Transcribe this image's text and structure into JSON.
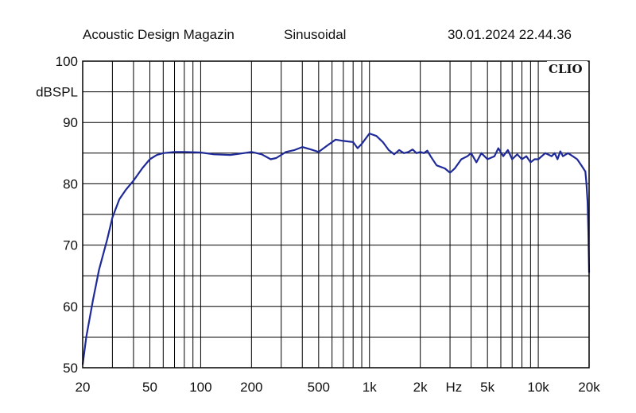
{
  "header": {
    "left": "Acoustic Design Magazin",
    "middle": "Sinusoidal",
    "right": "30.01.2024 22.44.36"
  },
  "brand": "CLIO",
  "colors": {
    "curve": "#1f2a99",
    "grid": "#000000",
    "background": "#ffffff"
  },
  "chart_data": {
    "type": "line",
    "x_scale": "log",
    "xlim": [
      20,
      20000
    ],
    "ylim": [
      50,
      100
    ],
    "ylabel": "dBSPL",
    "xlabel": "Hz",
    "grid": true,
    "y_ticks": [
      50,
      60,
      70,
      80,
      90,
      100
    ],
    "x_tick_labels": [
      {
        "value": 20,
        "label": "20"
      },
      {
        "value": 50,
        "label": "50"
      },
      {
        "value": 100,
        "label": "100"
      },
      {
        "value": 200,
        "label": "200"
      },
      {
        "value": 500,
        "label": "500"
      },
      {
        "value": 1000,
        "label": "1k"
      },
      {
        "value": 2000,
        "label": "2k"
      },
      {
        "value": 5000,
        "label": "5k"
      },
      {
        "value": 10000,
        "label": "10k"
      },
      {
        "value": 20000,
        "label": "20k"
      }
    ],
    "x_unit_label_value": 3160,
    "series": [
      {
        "x": [
          20,
          21,
          23,
          25,
          28,
          30,
          33,
          36,
          40,
          45,
          50,
          55,
          60,
          70,
          80,
          100,
          120,
          150,
          180,
          200,
          230,
          260,
          280,
          320,
          360,
          400,
          450,
          500,
          560,
          630,
          700,
          800,
          850,
          900,
          1000,
          1100,
          1200,
          1300,
          1400,
          1500,
          1600,
          1700,
          1800,
          1900,
          2000,
          2100,
          2200,
          2300,
          2500,
          2800,
          3000,
          3200,
          3500,
          3800,
          4000,
          4300,
          4600,
          5000,
          5500,
          5800,
          6200,
          6600,
          7000,
          7500,
          8000,
          8500,
          9000,
          9500,
          10000,
          11000,
          12000,
          12500,
          13000,
          13500,
          14000,
          15000,
          16000,
          17000,
          18000,
          18500,
          19000,
          19300,
          19600,
          19800,
          20000
        ],
        "y": [
          50.5,
          55.0,
          61.0,
          66.0,
          71.0,
          74.5,
          77.5,
          79.0,
          80.5,
          82.5,
          84.0,
          84.7,
          85.0,
          85.2,
          85.2,
          85.1,
          84.8,
          84.7,
          85.0,
          85.2,
          84.8,
          84.0,
          84.2,
          85.2,
          85.5,
          86.0,
          85.6,
          85.2,
          86.2,
          87.2,
          87.0,
          86.8,
          85.8,
          86.5,
          88.2,
          87.8,
          86.8,
          85.5,
          84.8,
          85.5,
          85.0,
          85.2,
          85.6,
          85.0,
          85.2,
          85.0,
          85.4,
          84.5,
          83.0,
          82.5,
          81.8,
          82.5,
          84.0,
          84.5,
          85.0,
          83.5,
          85.0,
          84.0,
          84.5,
          85.8,
          84.5,
          85.5,
          84.0,
          84.8,
          84.0,
          84.5,
          83.5,
          84.0,
          84.0,
          85.0,
          84.5,
          85.0,
          84.0,
          85.3,
          84.5,
          85.0,
          84.5,
          84.0,
          83.0,
          82.5,
          82.0,
          80.0,
          77.0,
          72.0,
          65.5
        ]
      }
    ]
  }
}
